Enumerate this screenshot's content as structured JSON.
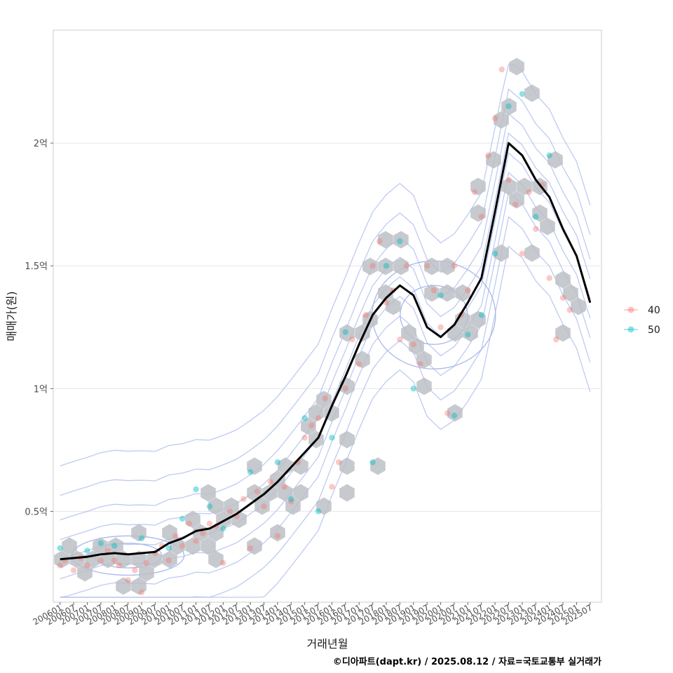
{
  "chart_data": {
    "type": "scatter",
    "xlabel": "거래년월",
    "ylabel": "매매가(원)",
    "caption": "©디아파트(dapt.kr) / 2025.08.12 / 자료=국토교통부 실거래가",
    "x_ticks": [
      "200601",
      "200607",
      "200701",
      "200707",
      "200801",
      "200807",
      "200901",
      "200907",
      "201001",
      "201007",
      "201101",
      "201107",
      "201201",
      "201207",
      "201301",
      "201307",
      "201401",
      "201407",
      "201501",
      "201507",
      "201601",
      "201607",
      "201701",
      "201707",
      "201801",
      "201807",
      "201901",
      "201907",
      "202001",
      "202007",
      "202101",
      "202107",
      "202201",
      "202207",
      "202301",
      "202307",
      "202401",
      "202407",
      "202501",
      "202507"
    ],
    "y_ticks": [
      {
        "value": 50000000,
        "label": "0.5억"
      },
      {
        "value": 100000000,
        "label": "1억"
      },
      {
        "value": 150000000,
        "label": "1.5억"
      },
      {
        "value": 200000000,
        "label": "2억"
      }
    ],
    "xlim": [
      "200510",
      "202512"
    ],
    "ylim": [
      13000000,
      246000000
    ],
    "grid": true,
    "legend_position": "right",
    "legend": [
      {
        "label": "40",
        "color": "#F8766D"
      },
      {
        "label": "50",
        "color": "#00BFC4"
      }
    ],
    "moving_average": [
      [
        "200601",
        30.5
      ],
      [
        "200607",
        31
      ],
      [
        "200701",
        31.5
      ],
      [
        "200707",
        32.5
      ],
      [
        "200801",
        33
      ],
      [
        "200807",
        32.5
      ],
      [
        "200901",
        33
      ],
      [
        "200907",
        33.5
      ],
      [
        "201001",
        37
      ],
      [
        "201007",
        39
      ],
      [
        "201101",
        42
      ],
      [
        "201107",
        43
      ],
      [
        "201201",
        46
      ],
      [
        "201207",
        49
      ],
      [
        "201301",
        53
      ],
      [
        "201307",
        57
      ],
      [
        "201401",
        62
      ],
      [
        "201407",
        68
      ],
      [
        "201501",
        74
      ],
      [
        "201507",
        80
      ],
      [
        "201601",
        93
      ],
      [
        "201607",
        105
      ],
      [
        "201701",
        118
      ],
      [
        "201707",
        130
      ],
      [
        "201801",
        137
      ],
      [
        "201807",
        142
      ],
      [
        "201901",
        138
      ],
      [
        "201907",
        125
      ],
      [
        "202001",
        121
      ],
      [
        "202007",
        126
      ],
      [
        "202101",
        135
      ],
      [
        "202107",
        145
      ],
      [
        "202201",
        172
      ],
      [
        "202207",
        200
      ],
      [
        "202301",
        195
      ],
      [
        "202307",
        185
      ],
      [
        "202401",
        178
      ],
      [
        "202407",
        165
      ],
      [
        "202501",
        154
      ],
      [
        "202507",
        135
      ]
    ],
    "scatter_40": [
      [
        "200601",
        28
      ],
      [
        "200603",
        30
      ],
      [
        "200607",
        26
      ],
      [
        "200610",
        31
      ],
      [
        "200701",
        28
      ],
      [
        "200707",
        30
      ],
      [
        "200710",
        34
      ],
      [
        "200801",
        30
      ],
      [
        "200803",
        28
      ],
      [
        "200807",
        22
      ],
      [
        "200810",
        26
      ],
      [
        "200901",
        17
      ],
      [
        "200903",
        29
      ],
      [
        "200907",
        33
      ],
      [
        "200910",
        36
      ],
      [
        "201001",
        30
      ],
      [
        "201004",
        40
      ],
      [
        "201007",
        36
      ],
      [
        "201010",
        45
      ],
      [
        "201101",
        38
      ],
      [
        "201104",
        41
      ],
      [
        "201107",
        45
      ],
      [
        "201110",
        44
      ],
      [
        "201201",
        29
      ],
      [
        "201204",
        50
      ],
      [
        "201207",
        48
      ],
      [
        "201210",
        55
      ],
      [
        "201301",
        35
      ],
      [
        "201304",
        58
      ],
      [
        "201307",
        52
      ],
      [
        "201310",
        62
      ],
      [
        "201401",
        40
      ],
      [
        "201404",
        60
      ],
      [
        "201407",
        54
      ],
      [
        "201410",
        70
      ],
      [
        "201501",
        80
      ],
      [
        "201504",
        85
      ],
      [
        "201507",
        88
      ],
      [
        "201510",
        96
      ],
      [
        "201601",
        60
      ],
      [
        "201604",
        70
      ],
      [
        "201607",
        100
      ],
      [
        "201610",
        120
      ],
      [
        "201701",
        110
      ],
      [
        "201704",
        130
      ],
      [
        "201707",
        150
      ],
      [
        "201710",
        160
      ],
      [
        "201801",
        135
      ],
      [
        "201804",
        140
      ],
      [
        "201807",
        120
      ],
      [
        "201810",
        150
      ],
      [
        "201901",
        118
      ],
      [
        "201904",
        110
      ],
      [
        "201907",
        150
      ],
      [
        "201910",
        140
      ],
      [
        "202001",
        125
      ],
      [
        "202004",
        90
      ],
      [
        "202007",
        150
      ],
      [
        "202010",
        130
      ],
      [
        "202101",
        140
      ],
      [
        "202104",
        180
      ],
      [
        "202107",
        170
      ],
      [
        "202110",
        195
      ],
      [
        "202201",
        210
      ],
      [
        "202204",
        230
      ],
      [
        "202207",
        185
      ],
      [
        "202210",
        175
      ],
      [
        "202301",
        155
      ],
      [
        "202304",
        180
      ],
      [
        "202307",
        165
      ],
      [
        "202310",
        183
      ],
      [
        "202401",
        145
      ],
      [
        "202404",
        120
      ],
      [
        "202407",
        137
      ],
      [
        "202410",
        132
      ]
    ],
    "scatter_50": [
      [
        "200601",
        35
      ],
      [
        "200701",
        34
      ],
      [
        "200707",
        37
      ],
      [
        "200801",
        36
      ],
      [
        "200901",
        39
      ],
      [
        "201001",
        35
      ],
      [
        "201007",
        47
      ],
      [
        "201101",
        59
      ],
      [
        "201107",
        52
      ],
      [
        "201201",
        43
      ],
      [
        "201301",
        66
      ],
      [
        "201401",
        70
      ],
      [
        "201407",
        55
      ],
      [
        "201501",
        88
      ],
      [
        "201507",
        50
      ],
      [
        "201601",
        80
      ],
      [
        "201607",
        123
      ],
      [
        "201707",
        70
      ],
      [
        "201801",
        150
      ],
      [
        "201807",
        160
      ],
      [
        "201901",
        100
      ],
      [
        "202001",
        138
      ],
      [
        "202007",
        89
      ],
      [
        "202101",
        122
      ],
      [
        "202107",
        130
      ],
      [
        "202201",
        155
      ],
      [
        "202207",
        215
      ],
      [
        "202301",
        220
      ],
      [
        "202307",
        170
      ],
      [
        "202401",
        195
      ]
    ]
  }
}
